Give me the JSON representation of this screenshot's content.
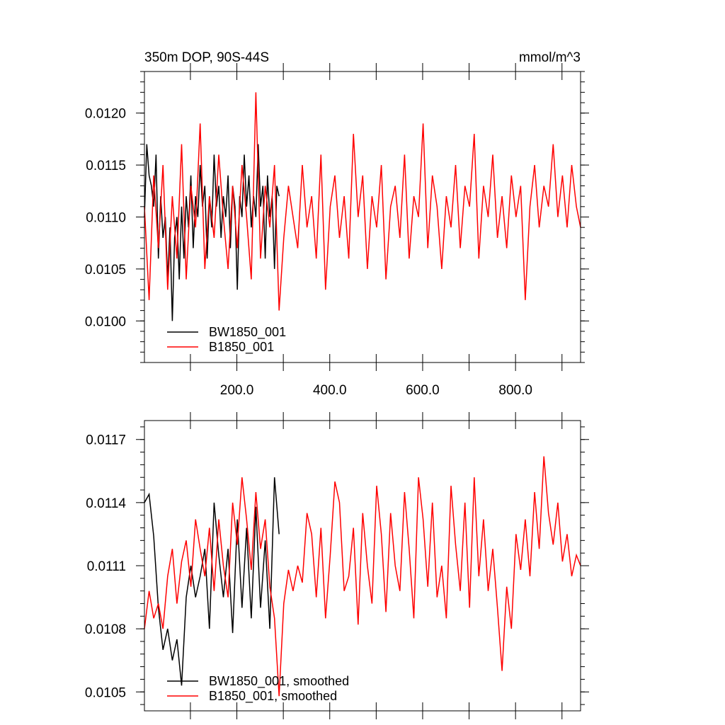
{
  "chart_data": [
    {
      "type": "line",
      "title": "350m DOP, 90S-44S",
      "units": "mmol/m^3",
      "xlim": [
        1,
        940
      ],
      "ylim": [
        0.0096,
        0.0124
      ],
      "x_ticks": [
        200.0,
        400.0,
        600.0,
        800.0
      ],
      "x_tick_labels": [
        "200.0",
        "400.0",
        "600.0",
        "800.0"
      ],
      "y_ticks": [
        0.01,
        0.0105,
        0.011,
        0.0115,
        0.012
      ],
      "y_tick_labels": [
        "0.0100",
        "0.0105",
        "0.0110",
        "0.0115",
        "0.0120"
      ],
      "legend_position": "bottom-left",
      "series": [
        {
          "name": "BW1850_001",
          "color": "#000000",
          "x": [
            1,
            6,
            11,
            16,
            21,
            26,
            31,
            36,
            41,
            46,
            51,
            56,
            61,
            66,
            71,
            76,
            81,
            86,
            91,
            96,
            101,
            106,
            111,
            116,
            121,
            126,
            131,
            136,
            141,
            146,
            151,
            156,
            161,
            166,
            171,
            176,
            181,
            186,
            191,
            196,
            201,
            206,
            211,
            216,
            221,
            226,
            231,
            236,
            241,
            246,
            251,
            256,
            261,
            266,
            271,
            276,
            281,
            286,
            291
          ],
          "values": [
            0.011,
            0.0117,
            0.0114,
            0.0113,
            0.0111,
            0.0116,
            0.0106,
            0.0112,
            0.0108,
            0.011,
            0.0104,
            0.0109,
            0.01,
            0.0108,
            0.011,
            0.0104,
            0.0111,
            0.0106,
            0.0112,
            0.0109,
            0.0114,
            0.0107,
            0.0112,
            0.011,
            0.0115,
            0.0111,
            0.0113,
            0.0106,
            0.0112,
            0.0109,
            0.0116,
            0.0111,
            0.0113,
            0.0108,
            0.0112,
            0.011,
            0.0114,
            0.0107,
            0.0113,
            0.0111,
            0.0103,
            0.0112,
            0.011,
            0.0116,
            0.0111,
            0.0114,
            0.0109,
            0.0112,
            0.011,
            0.0117,
            0.0111,
            0.0113,
            0.0106,
            0.0114,
            0.011,
            0.0112,
            0.0105,
            0.0113,
            0.0112
          ]
        },
        {
          "name": "B1850_001",
          "color": "#ff0000",
          "x": [
            1,
            11,
            21,
            31,
            41,
            51,
            61,
            71,
            81,
            91,
            101,
            111,
            121,
            131,
            141,
            151,
            161,
            171,
            181,
            191,
            201,
            211,
            221,
            231,
            241,
            251,
            261,
            271,
            281,
            291,
            301,
            311,
            321,
            331,
            341,
            351,
            361,
            371,
            381,
            391,
            401,
            411,
            421,
            431,
            441,
            451,
            461,
            471,
            481,
            491,
            501,
            511,
            521,
            531,
            541,
            551,
            561,
            571,
            581,
            591,
            601,
            611,
            621,
            631,
            641,
            651,
            661,
            671,
            681,
            691,
            701,
            711,
            721,
            731,
            741,
            751,
            761,
            771,
            781,
            791,
            801,
            811,
            821,
            831,
            841,
            851,
            861,
            871,
            881,
            891,
            901,
            911,
            921,
            931,
            940
          ],
          "values": [
            0.0111,
            0.0102,
            0.0114,
            0.0107,
            0.0115,
            0.0103,
            0.0112,
            0.0106,
            0.0117,
            0.0104,
            0.0113,
            0.0109,
            0.0119,
            0.0105,
            0.0112,
            0.0108,
            0.0116,
            0.011,
            0.0105,
            0.0113,
            0.0107,
            0.0115,
            0.011,
            0.0104,
            0.0122,
            0.0106,
            0.0113,
            0.0109,
            0.0115,
            0.0101,
            0.0108,
            0.0113,
            0.011,
            0.0107,
            0.0115,
            0.0109,
            0.0112,
            0.0106,
            0.0116,
            0.0103,
            0.0111,
            0.0114,
            0.0108,
            0.0112,
            0.0106,
            0.0118,
            0.011,
            0.0114,
            0.0105,
            0.0112,
            0.0109,
            0.0115,
            0.0104,
            0.0111,
            0.0113,
            0.0108,
            0.0116,
            0.0106,
            0.0112,
            0.011,
            0.0119,
            0.0107,
            0.0114,
            0.0111,
            0.0105,
            0.0112,
            0.0109,
            0.0115,
            0.0107,
            0.0113,
            0.0111,
            0.0118,
            0.0106,
            0.0113,
            0.011,
            0.0116,
            0.0108,
            0.0112,
            0.0107,
            0.0114,
            0.011,
            0.0113,
            0.0102,
            0.0111,
            0.0115,
            0.0109,
            0.0113,
            0.0111,
            0.0117,
            0.011,
            0.0114,
            0.0109,
            0.0115,
            0.0111,
            0.0109
          ]
        }
      ]
    },
    {
      "type": "line",
      "title": "",
      "xlim": [
        1,
        940
      ],
      "ylim": [
        0.01041,
        0.01179
      ],
      "y_ticks": [
        0.0105,
        0.0108,
        0.0111,
        0.0114,
        0.0117
      ],
      "y_tick_labels": [
        "0.0105",
        "0.0108",
        "0.0111",
        "0.0114",
        "0.0117"
      ],
      "legend_position": "bottom-left",
      "series": [
        {
          "name": "BW1850_001, smoothed",
          "color": "#000000",
          "x": [
            1,
            11,
            21,
            31,
            41,
            51,
            61,
            71,
            81,
            91,
            101,
            111,
            121,
            131,
            141,
            151,
            161,
            171,
            181,
            191,
            201,
            211,
            221,
            231,
            241,
            251,
            261,
            271,
            281,
            291
          ],
          "values": [
            0.0114,
            0.01144,
            0.01124,
            0.0109,
            0.0107,
            0.0108,
            0.01065,
            0.01075,
            0.01053,
            0.01095,
            0.0111,
            0.01095,
            0.01105,
            0.01118,
            0.0108,
            0.0114,
            0.01115,
            0.01095,
            0.01118,
            0.01078,
            0.01132,
            0.0109,
            0.01128,
            0.01085,
            0.01138,
            0.0109,
            0.01122,
            0.0108,
            0.01152,
            0.01125
          ]
        },
        {
          "name": "B1850_001, smoothed",
          "color": "#ff0000",
          "x": [
            1,
            11,
            21,
            31,
            41,
            51,
            61,
            71,
            81,
            91,
            101,
            111,
            121,
            131,
            141,
            151,
            161,
            171,
            181,
            191,
            201,
            211,
            221,
            231,
            241,
            251,
            261,
            271,
            281,
            291,
            301,
            311,
            321,
            331,
            341,
            351,
            361,
            371,
            381,
            391,
            401,
            411,
            421,
            431,
            441,
            451,
            461,
            471,
            481,
            491,
            501,
            511,
            521,
            531,
            541,
            551,
            561,
            571,
            581,
            591,
            601,
            611,
            621,
            631,
            641,
            651,
            661,
            671,
            681,
            691,
            701,
            711,
            721,
            731,
            741,
            751,
            761,
            771,
            781,
            791,
            801,
            811,
            821,
            831,
            841,
            851,
            861,
            871,
            881,
            891,
            901,
            911,
            921,
            931,
            940
          ],
          "values": [
            0.0108,
            0.01098,
            0.01085,
            0.01092,
            0.0108,
            0.01105,
            0.01118,
            0.01092,
            0.01112,
            0.01122,
            0.011,
            0.01132,
            0.01118,
            0.01105,
            0.01128,
            0.01098,
            0.01132,
            0.0111,
            0.01095,
            0.0114,
            0.0112,
            0.01152,
            0.01132,
            0.01108,
            0.01145,
            0.01118,
            0.01132,
            0.011,
            0.01085,
            0.01048,
            0.01092,
            0.01108,
            0.01098,
            0.0111,
            0.01102,
            0.01135,
            0.01125,
            0.01095,
            0.01128,
            0.01085,
            0.01115,
            0.0115,
            0.0114,
            0.01098,
            0.01105,
            0.01128,
            0.01082,
            0.01135,
            0.0111,
            0.01092,
            0.01148,
            0.01125,
            0.01088,
            0.01135,
            0.0111,
            0.01098,
            0.01145,
            0.01118,
            0.01085,
            0.01152,
            0.01132,
            0.011,
            0.0114,
            0.01095,
            0.0111,
            0.01085,
            0.01148,
            0.0112,
            0.01098,
            0.0114,
            0.0109,
            0.01152,
            0.01105,
            0.01132,
            0.01098,
            0.01118,
            0.0109,
            0.0106,
            0.011,
            0.0108,
            0.01125,
            0.01108,
            0.01132,
            0.01105,
            0.01145,
            0.01118,
            0.01162,
            0.01135,
            0.0112,
            0.0114,
            0.01112,
            0.01125,
            0.01105,
            0.01115,
            0.0111
          ]
        }
      ]
    }
  ]
}
